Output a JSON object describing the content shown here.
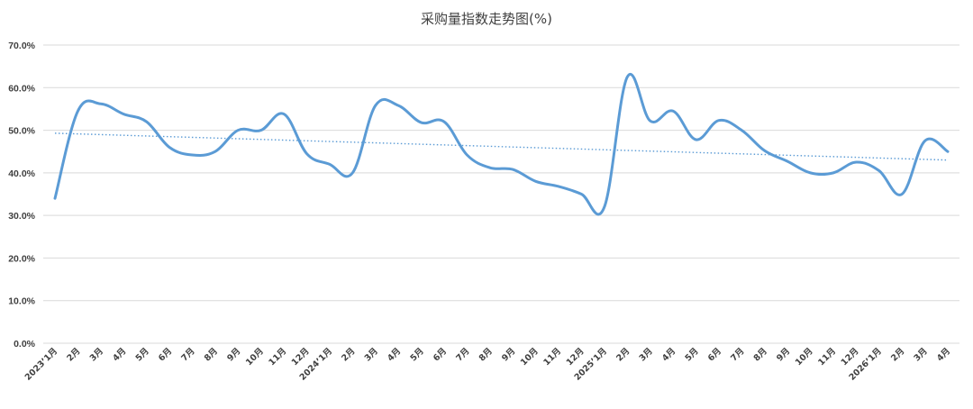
{
  "chart_data": {
    "type": "line",
    "title": "采购量指数走势图(%)",
    "xlabel": "",
    "ylabel": "",
    "ylim": [
      0,
      70
    ],
    "yticks": [
      "0.0%",
      "10.0%",
      "20.0%",
      "30.0%",
      "40.0%",
      "50.0%",
      "60.0%",
      "70.0%"
    ],
    "grid": true,
    "legend": "none",
    "categories": [
      "2023’1月",
      "2月",
      "3月",
      "4月",
      "5月",
      "6月",
      "7月",
      "8月",
      "9月",
      "10月",
      "11月",
      "12月",
      "2024’1月",
      "2月",
      "3月",
      "4月",
      "5月",
      "6月",
      "7月",
      "8月",
      "9月",
      "10月",
      "11月",
      "12月",
      "2025’1月",
      "2月",
      "3月",
      "4月",
      "5月",
      "6月",
      "7月",
      "8月",
      "9月",
      "10月",
      "11月",
      "12月",
      "2026’1月",
      "2月",
      "3月",
      "4月"
    ],
    "series": [
      {
        "values": [
          34.0,
          54.5,
          56.2,
          53.8,
          52.0,
          46.0,
          44.2,
          45.0,
          50.0,
          50.0,
          53.8,
          44.5,
          42.0,
          40.0,
          55.8,
          55.8,
          51.8,
          52.0,
          44.2,
          41.2,
          40.8,
          38.0,
          36.8,
          35.0,
          32.0,
          62.5,
          52.2,
          54.5,
          47.8,
          52.3,
          50.0,
          45.2,
          42.7,
          40.0,
          40.0,
          42.5,
          40.5,
          35.0,
          47.5,
          45.0
        ],
        "color": "#5b9bd5"
      }
    ],
    "trendline": {
      "start": 49.3,
      "end": 43.0,
      "color": "#5b9bd5",
      "style": "dotted"
    }
  }
}
